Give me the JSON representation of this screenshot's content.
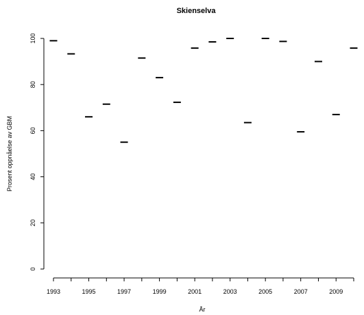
{
  "chart_data": {
    "type": "scatter",
    "title": "Skienselva",
    "xlabel": "År",
    "ylabel": "Prosent oppnåelse av GBM",
    "xlim": [
      1993,
      2010
    ],
    "ylim": [
      0,
      100
    ],
    "x_ticks": [
      1993,
      1994,
      1995,
      1996,
      1997,
      1998,
      1999,
      2000,
      2001,
      2002,
      2003,
      2004,
      2005,
      2006,
      2007,
      2008,
      2009,
      2010
    ],
    "x_tick_labels": [
      "1993",
      "1995",
      "1997",
      "1999",
      "2001",
      "2003",
      "2005",
      "2007",
      "2009"
    ],
    "y_ticks": [
      0,
      20,
      40,
      60,
      80,
      100
    ],
    "grid": false,
    "series": [
      {
        "x": [
          1993,
          1994,
          1995,
          1996,
          1997,
          1998,
          1999,
          2000,
          2001,
          2002,
          2003,
          2004,
          2005,
          2006,
          2007,
          2008,
          2009,
          2010
        ],
        "values": [
          99.0,
          93.3,
          66.0,
          71.5,
          55.0,
          91.5,
          83.0,
          72.3,
          95.8,
          98.5,
          100.0,
          63.5,
          100.0,
          98.7,
          59.5,
          90.0,
          67.0,
          95.8
        ]
      }
    ]
  }
}
